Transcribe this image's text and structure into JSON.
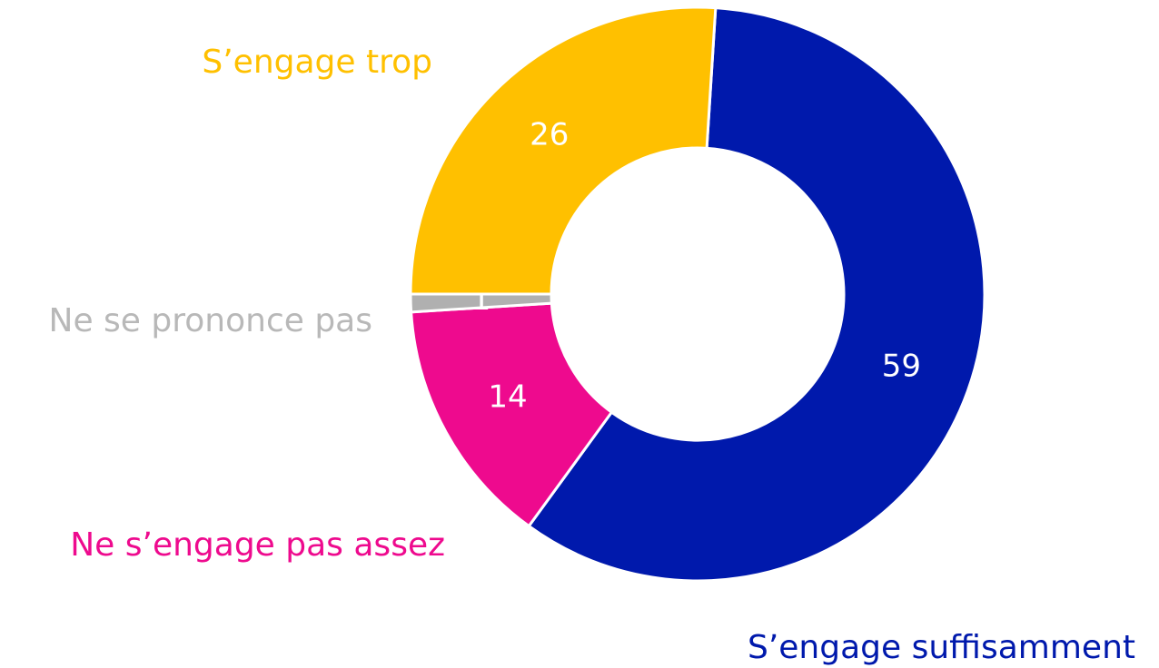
{
  "chart_data": {
    "type": "donut",
    "categories": [
      "S’engage suffisamment",
      "Ne s’engage pas assez",
      "Ne se prononce pas",
      "S’engage trop"
    ],
    "values": [
      59,
      14,
      1,
      26
    ],
    "colors": [
      "#0019ac",
      "#ee0a8e",
      "#b0b0b0",
      "#ffc000"
    ]
  }
}
